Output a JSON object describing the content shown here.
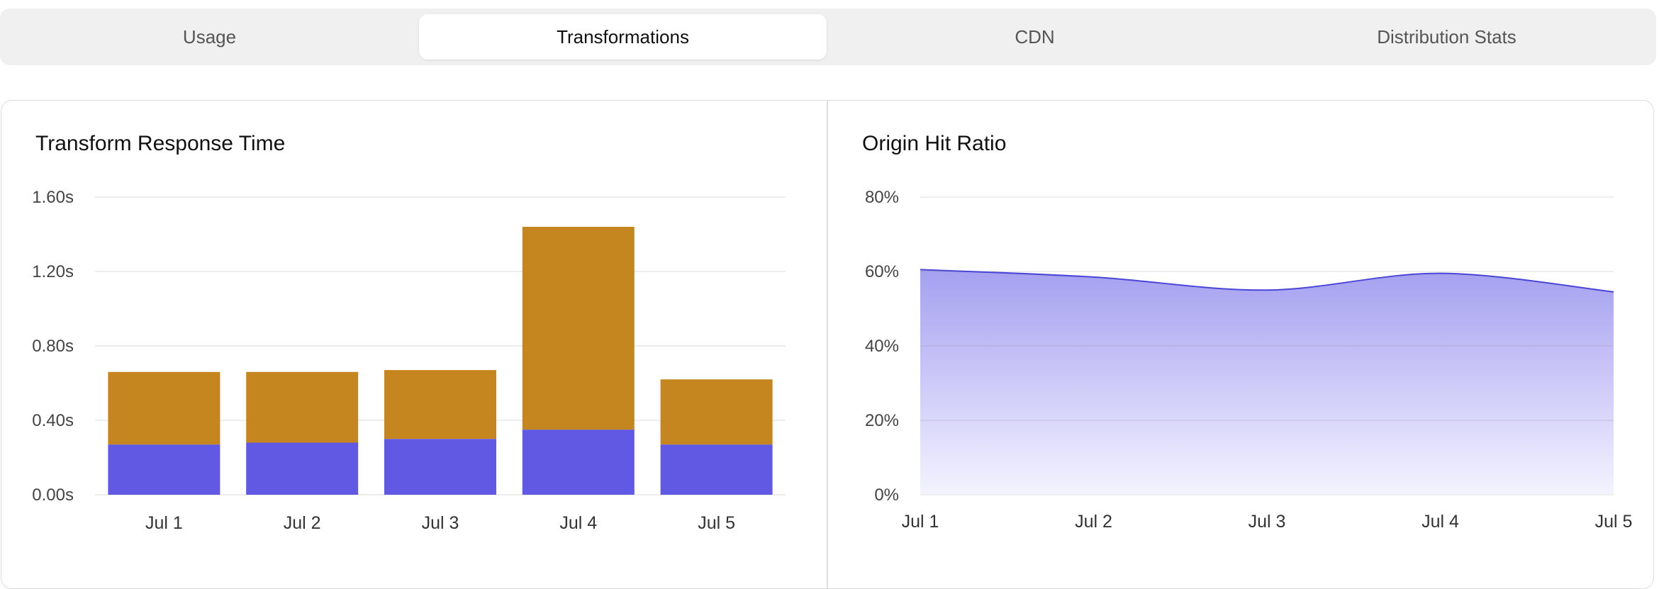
{
  "tabs": [
    {
      "label": "Usage",
      "active": false
    },
    {
      "label": "Transformations",
      "active": true
    },
    {
      "label": "CDN",
      "active": false
    },
    {
      "label": "Distribution Stats",
      "active": false
    }
  ],
  "colors": {
    "bar_bottom": "#6159e4",
    "bar_top": "#c6861f",
    "area_line": "#4b45d6",
    "area_fill_top": "#a5a0f0",
    "area_fill_bottom": "#f4f3ff",
    "grid": "#e6e6e6"
  },
  "chart_data": [
    {
      "type": "bar",
      "stacked": true,
      "title": "Transform Response Time",
      "categories": [
        "Jul 1",
        "Jul 2",
        "Jul 3",
        "Jul 4",
        "Jul 5"
      ],
      "series": [
        {
          "values": [
            0.27,
            0.28,
            0.3,
            0.35,
            0.27
          ]
        },
        {
          "values": [
            0.39,
            0.38,
            0.37,
            1.09,
            0.35
          ]
        }
      ],
      "yticks": [
        "0.00s",
        "0.40s",
        "0.80s",
        "1.20s",
        "1.60s"
      ],
      "ylim": [
        0,
        1.6
      ],
      "grid": true
    },
    {
      "type": "area",
      "title": "Origin Hit Ratio",
      "x": [
        "Jul 1",
        "Jul 2",
        "Jul 3",
        "Jul 4",
        "Jul 5"
      ],
      "values": [
        60.5,
        58.5,
        55.0,
        59.5,
        54.5
      ],
      "yticks": [
        "0%",
        "20%",
        "40%",
        "60%",
        "80%"
      ],
      "ylim": [
        0,
        80
      ],
      "grid": true
    }
  ]
}
